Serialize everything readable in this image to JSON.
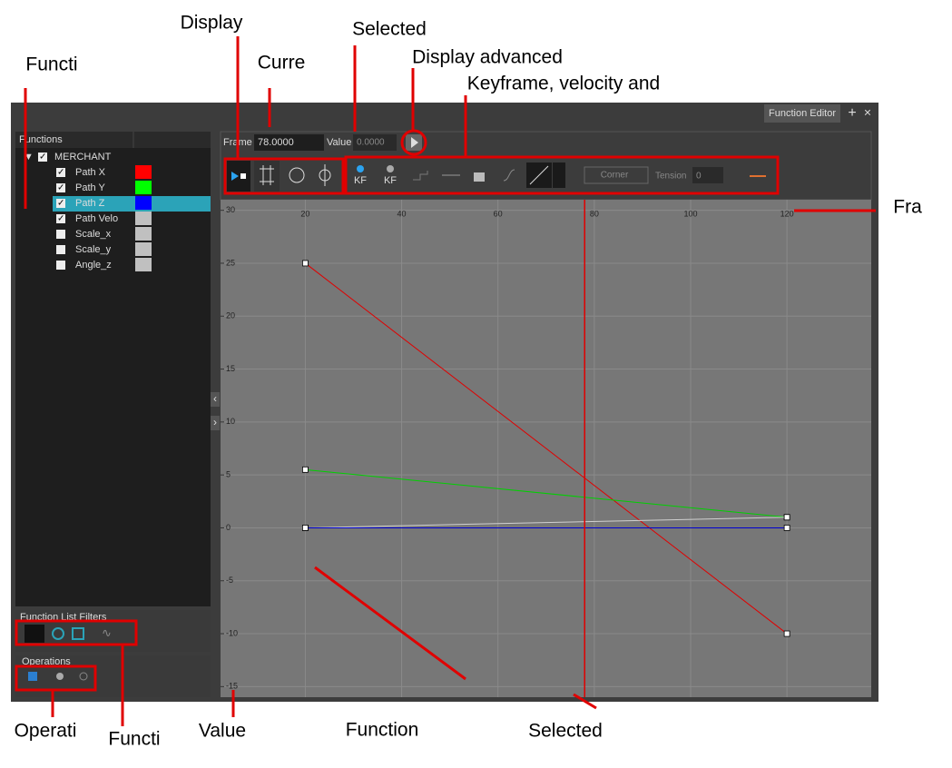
{
  "window": {
    "title": "Function Editor"
  },
  "functions_panel": {
    "header": "Functions",
    "root": "MERCHANT",
    "selected_item": 2,
    "items": [
      {
        "label": "Path X",
        "checked": true,
        "color": "#ff0000"
      },
      {
        "label": "Path Y",
        "checked": true,
        "color": "#00ff00"
      },
      {
        "label": "Path Z",
        "checked": true,
        "color": "#0000ff"
      },
      {
        "label": "Path Velo",
        "checked": true,
        "color": "#c0c0c0"
      },
      {
        "label": "Scale_x",
        "checked": false,
        "color": "#c0c0c0"
      },
      {
        "label": "Scale_y",
        "checked": false,
        "color": "#c0c0c0"
      },
      {
        "label": "Angle_z",
        "checked": false,
        "color": "#c0c0c0"
      }
    ]
  },
  "toolbar": {
    "frame_label": "Frame",
    "frame_value": "78.0000",
    "value_label": "Value",
    "value_value": "0.0000",
    "add_keyframe": "KF",
    "remove_keyframe": "KF",
    "interpolation": "Corner",
    "tension_label": "Tension",
    "tension_value": "0"
  },
  "filters": {
    "title": "Function List Filters"
  },
  "operations": {
    "title": "Operations"
  },
  "chart_data": {
    "type": "line",
    "x": [
      20,
      120
    ],
    "series": [
      {
        "color": "#e00000",
        "values": [
          25,
          -10
        ]
      },
      {
        "color": "#00d000",
        "values": [
          5.5,
          1
        ]
      },
      {
        "color": "#d0d0d0",
        "values": [
          0,
          1
        ]
      },
      {
        "color": "#0000d0",
        "values": [
          0,
          0
        ]
      }
    ],
    "xlim": [
      2.4,
      137.5
    ],
    "ylim": [
      -16,
      31
    ],
    "xticks": [
      20,
      40,
      60,
      80,
      100,
      120
    ],
    "yticks": [
      30,
      25,
      20,
      15,
      10,
      5,
      0,
      -5,
      -10,
      -15
    ],
    "grid": true,
    "current_frame": 78
  },
  "callouts": [
    "Display",
    "Selected",
    "Curre",
    "Display advanced",
    "Keyframe, velocity and",
    "Functi",
    "Fra",
    "Operati",
    "Functi",
    "Value",
    "Function",
    "Selected"
  ]
}
